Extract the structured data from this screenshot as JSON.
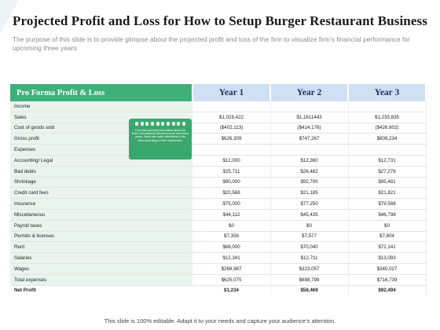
{
  "title": "Projected Profit and Loss for How to Setup Burger Restaurant Business",
  "subtitle": "The purpose of this slide is to provide glimpse about the projected profit and loss of the firm to visualize firm’s financial performance for upcoming three years",
  "table": {
    "header_label": "Pro Forma Profit & Loss",
    "years": [
      "Year 1",
      "Year 2",
      "Year 3"
    ],
    "rows": [
      {
        "label": "Income",
        "values": [
          "",
          "",
          ""
        ]
      },
      {
        "label": "Sales",
        "values": [
          "$1,028,422",
          "$1,1611443",
          "$1,235,835"
        ]
      },
      {
        "label": "Cost of goods sold",
        "values": [
          "($402,113)",
          "($414,176)",
          "($426,602)"
        ]
      },
      {
        "label": "Gross profit",
        "values": [
          "$626,309",
          "$747,267",
          "$809,234"
        ]
      },
      {
        "label": "Expenses",
        "values": [
          "",
          "",
          ""
        ]
      },
      {
        "label": "Accounting/ Legal",
        "values": [
          "$12,000",
          "$12,360",
          "$12,731"
        ]
      },
      {
        "label": "Bad debts",
        "values": [
          "$25,711",
          "$26,482",
          "$27,276"
        ]
      },
      {
        "label": "Shrinkage",
        "values": [
          "$90,000",
          "$92,700",
          "$95,481"
        ]
      },
      {
        "label": "Credit card fees",
        "values": [
          "$20,568",
          "$21,185",
          "$21,821"
        ]
      },
      {
        "label": "Insurance",
        "values": [
          "$75,000",
          "$77,250",
          "$79,568"
        ]
      },
      {
        "label": "Miscellaneous",
        "values": [
          "$44,112",
          "$45,435",
          "$46,798"
        ]
      },
      {
        "label": "Payroll taxes",
        "values": [
          "$0",
          "$0",
          "$0"
        ]
      },
      {
        "label": "Permits & licenses",
        "values": [
          "$7,356",
          "$7,577",
          "$7,804"
        ]
      },
      {
        "label": "Rent",
        "values": [
          "$68,000",
          "$70,040",
          "$72,141"
        ]
      },
      {
        "label": "Salaries",
        "values": [
          "$12,341",
          "$12,711",
          "$13,093"
        ]
      },
      {
        "label": "Wages",
        "values": [
          "$269,987",
          "$323,057",
          "$340,027"
        ]
      },
      {
        "label": "Total expenses",
        "values": [
          "$625,075",
          "$688,798",
          "$716,739"
        ]
      }
    ],
    "net_profit": {
      "label": "Net Profit",
      "values": [
        "$1,234",
        "$58,469",
        "$92,494"
      ]
    }
  },
  "sticky_note": "This slide provides information about the firm’s forecasted profit and loss for next three years. Users can make alterations in the slide according to their requirement.",
  "footer": "This slide is 100% editable. Adapt it to your needs and capture your audience’s attention.",
  "colors": {
    "header_green": "#3fb07a",
    "label_bg": "#e9f4ee",
    "year_header_bg": "#cfe0f5",
    "note_green": "#3aa86c"
  }
}
